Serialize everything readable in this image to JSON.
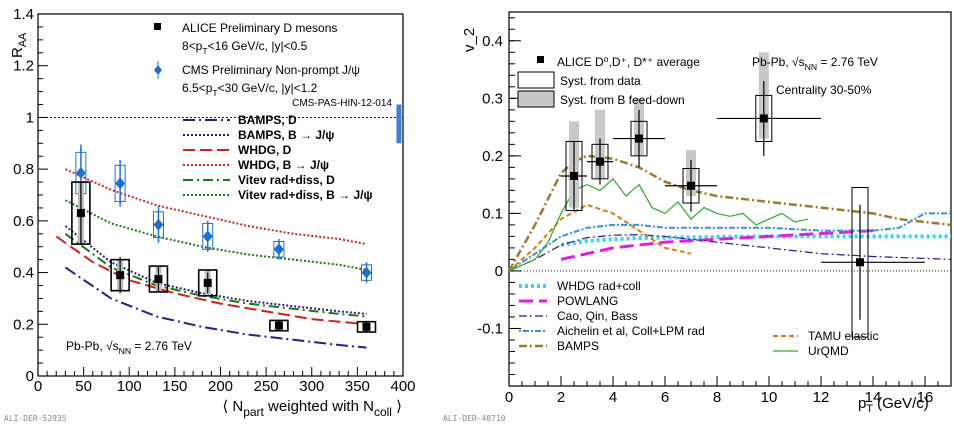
{
  "watermarks": {
    "left": "ALI-DER-52935",
    "right": "ALI-DER-48710"
  },
  "chart_data": [
    {
      "type": "scatter",
      "title": "",
      "xlabel": "⟨ N_part weighted with N_coll ⟩",
      "ylabel": "R_AA",
      "xlim": [
        0,
        400
      ],
      "ylim": [
        0,
        1.4
      ],
      "xticks": [
        "0",
        "50",
        "100",
        "150",
        "200",
        "250",
        "300",
        "350",
        "400"
      ],
      "yticks": [
        "0",
        "0.2",
        "0.4",
        "0.6",
        "0.8",
        "1",
        "1.2",
        "1.4"
      ],
      "system_label": "Pb-Pb, √s_NN = 2.76 TeV",
      "ref_note": "CMS-PAS-HIN-12-014",
      "reference_line": 1.0,
      "global_uncertainty_box": {
        "x": 395,
        "ylo": 0.9,
        "yhi": 1.05,
        "color": "#3a7fd9"
      },
      "data_series": [
        {
          "name": "ALICE Preliminary D mesons",
          "sub": "8<p_T<16 GeV/c, |y|<0.5",
          "marker": "square",
          "color": "#000000",
          "points": [
            {
              "x": 47,
              "y": 0.63,
              "stat": 0.12,
              "syst": 0.12
            },
            {
              "x": 90,
              "y": 0.39,
              "stat": 0.07,
              "syst": 0.06
            },
            {
              "x": 132,
              "y": 0.375,
              "stat": 0.05,
              "syst": 0.05
            },
            {
              "x": 186,
              "y": 0.36,
              "stat": 0.04,
              "syst": 0.05
            },
            {
              "x": 264,
              "y": 0.195,
              "stat": 0.02,
              "syst": 0.02
            },
            {
              "x": 360,
              "y": 0.19,
              "stat": 0.02,
              "syst": 0.02
            }
          ]
        },
        {
          "name": "CMS Preliminary Non-prompt J/ψ",
          "sub": "6.5<p_T<30 GeV/c, |y|<1.2",
          "marker": "diamond",
          "color": "#1f6fd1",
          "points": [
            {
              "x": 47,
              "y": 0.785,
              "stat": 0.11,
              "syst": 0.08
            },
            {
              "x": 90,
              "y": 0.745,
              "stat": 0.09,
              "syst": 0.07
            },
            {
              "x": 132,
              "y": 0.585,
              "stat": 0.07,
              "syst": 0.05
            },
            {
              "x": 186,
              "y": 0.54,
              "stat": 0.06,
              "syst": 0.05
            },
            {
              "x": 264,
              "y": 0.49,
              "stat": 0.04,
              "syst": 0.03
            },
            {
              "x": 360,
              "y": 0.4,
              "stat": 0.04,
              "syst": 0.03
            }
          ]
        }
      ],
      "model_series": [
        {
          "name": "BAMPS, D",
          "color": "#2a1b8c",
          "dash": "12,4,2,4",
          "x": [
            30,
            80,
            130,
            180,
            230,
            280,
            330,
            360
          ],
          "values": [
            0.42,
            0.3,
            0.23,
            0.19,
            0.16,
            0.14,
            0.12,
            0.11
          ]
        },
        {
          "name": "BAMPS, B → J/ψ",
          "color": "#2a1b8c",
          "dash": "2,2",
          "x": [
            30,
            80,
            130,
            180,
            230,
            280,
            330,
            360
          ],
          "values": [
            0.58,
            0.44,
            0.36,
            0.32,
            0.29,
            0.27,
            0.25,
            0.24
          ]
        },
        {
          "name": "WHDG, D",
          "color": "#d42020",
          "dash": "12,5",
          "x": [
            20,
            60,
            100,
            150,
            200,
            250,
            300,
            360
          ],
          "values": [
            0.54,
            0.44,
            0.37,
            0.32,
            0.28,
            0.25,
            0.22,
            0.2
          ]
        },
        {
          "name": "WHDG, B → J/ψ",
          "color": "#d42020",
          "dash": "2,2",
          "x": [
            30,
            80,
            130,
            180,
            230,
            280,
            330,
            360
          ],
          "values": [
            0.8,
            0.72,
            0.66,
            0.62,
            0.58,
            0.55,
            0.53,
            0.51
          ]
        },
        {
          "name": "Vitev rad+diss, D",
          "color": "#167a16",
          "dash": "10,4,2,4",
          "x": [
            30,
            80,
            130,
            180,
            230,
            280,
            330,
            360
          ],
          "values": [
            0.55,
            0.42,
            0.35,
            0.31,
            0.28,
            0.26,
            0.24,
            0.23
          ]
        },
        {
          "name": "Vitev rad+diss, B → J/ψ",
          "color": "#167a16",
          "dash": "2,2",
          "x": [
            30,
            80,
            130,
            180,
            230,
            280,
            330,
            360
          ],
          "values": [
            0.68,
            0.59,
            0.54,
            0.5,
            0.47,
            0.45,
            0.43,
            0.41
          ]
        }
      ]
    },
    {
      "type": "scatter",
      "title": "",
      "xlabel": "p_T (GeV/c)",
      "ylabel": "v_2",
      "xlim": [
        0,
        17
      ],
      "ylim": [
        -0.2,
        0.45
      ],
      "xticks": [
        "0",
        "2",
        "4",
        "6",
        "8",
        "10",
        "12",
        "14",
        "16"
      ],
      "yticks": [
        "-0.1",
        "0",
        "0.1",
        "0.2",
        "0.3",
        "0.4"
      ],
      "system_label": "Pb-Pb, √s_NN = 2.76 TeV",
      "centrality": "Centrality 30-50%",
      "data_series": [
        {
          "name": "ALICE D⁰,D⁺, D*⁺ average",
          "marker": "square",
          "color": "#000000",
          "points": [
            {
              "x": 2.5,
              "xlo": 2,
              "xhi": 3,
              "y": 0.165,
              "stat": 0.06,
              "syst_data": 0.06,
              "syst_b_lo": 0.11,
              "syst_b_hi": 0.26
            },
            {
              "x": 3.5,
              "xlo": 3,
              "xhi": 4,
              "y": 0.19,
              "stat": 0.04,
              "syst_data": 0.03,
              "syst_b_lo": 0.16,
              "syst_b_hi": 0.28
            },
            {
              "x": 5.0,
              "xlo": 4,
              "xhi": 6,
              "y": 0.23,
              "stat": 0.05,
              "syst_data": 0.03,
              "syst_b_lo": 0.2,
              "syst_b_hi": 0.3
            },
            {
              "x": 7.0,
              "xlo": 6,
              "xhi": 8,
              "y": 0.148,
              "stat": 0.045,
              "syst_data": 0.03,
              "syst_b_lo": 0.13,
              "syst_b_hi": 0.21
            },
            {
              "x": 9.8,
              "xlo": 8,
              "xhi": 12,
              "y": 0.265,
              "stat": 0.065,
              "syst_data": 0.04,
              "syst_b_lo": 0.23,
              "syst_b_hi": 0.38
            },
            {
              "x": 13.5,
              "xlo": 12,
              "xhi": 16,
              "y": 0.015,
              "stat": 0.1,
              "syst_data": 0.13,
              "syst_b_lo": 0.0,
              "syst_b_hi": 0.0
            }
          ]
        }
      ],
      "legend_boxes": [
        {
          "name": "Syst. from data",
          "fill": "none"
        },
        {
          "name": "Syst. from B feed-down",
          "fill": "#c8c8c8"
        }
      ],
      "model_series": [
        {
          "name": "WHDG rad+coll",
          "color": "#2fd5ff",
          "dash": "3,3",
          "width": 4,
          "x": [
            2,
            3,
            4,
            5,
            6,
            8,
            10,
            12,
            14,
            16,
            17
          ],
          "values": [
            0.045,
            0.052,
            0.055,
            0.057,
            0.058,
            0.059,
            0.06,
            0.06,
            0.06,
            0.06,
            0.06
          ]
        },
        {
          "name": "POWLANG",
          "color": "#e020e0",
          "dash": "14,6",
          "width": 3,
          "x": [
            2,
            3,
            4,
            5,
            6,
            8,
            10,
            12,
            14
          ],
          "values": [
            0.02,
            0.03,
            0.04,
            0.045,
            0.05,
            0.055,
            0.06,
            0.065,
            0.07
          ]
        },
        {
          "name": "Cao, Qin, Bass",
          "color": "#2a1b8c",
          "dash": "8,3,2,3",
          "width": 1.2,
          "x": [
            0,
            1,
            2,
            3,
            4,
            5,
            6,
            8,
            10,
            12,
            14,
            17
          ],
          "values": [
            0.0,
            0.02,
            0.045,
            0.058,
            0.062,
            0.063,
            0.06,
            0.05,
            0.04,
            0.03,
            0.025,
            0.02
          ]
        },
        {
          "name": "Aichelin et al, Coll+LPM rad",
          "color": "#3a90e0",
          "dash": "2,2,6,2",
          "width": 2,
          "x": [
            0,
            1,
            2,
            3,
            4,
            5,
            6,
            8,
            10,
            12,
            14,
            15,
            16,
            17
          ],
          "values": [
            0.0,
            0.03,
            0.06,
            0.075,
            0.08,
            0.08,
            0.075,
            0.075,
            0.075,
            0.07,
            0.07,
            0.075,
            0.1,
            0.1
          ]
        },
        {
          "name": "BAMPS",
          "color": "#9a7a30",
          "dash": "8,3,2,3",
          "width": 2.5,
          "x": [
            0,
            1,
            2,
            2.5,
            3,
            4,
            5,
            6,
            7,
            8,
            10,
            12,
            14,
            15,
            16,
            17
          ],
          "values": [
            0.0,
            0.08,
            0.17,
            0.19,
            0.2,
            0.195,
            0.18,
            0.155,
            0.14,
            0.13,
            0.12,
            0.11,
            0.1,
            0.09,
            0.085,
            0.08
          ]
        },
        {
          "name": "TAMU elastic",
          "color": "#e07a10",
          "dash": "5,3",
          "width": 2,
          "x": [
            0,
            1,
            2,
            3,
            4,
            5,
            6,
            7
          ],
          "values": [
            0.0,
            0.04,
            0.09,
            0.115,
            0.1,
            0.07,
            0.04,
            0.03
          ]
        },
        {
          "name": "UrQMD",
          "color": "#25b025",
          "dash": "",
          "width": 1.2,
          "x": [
            0,
            1,
            1.5,
            2,
            2.5,
            3,
            3.5,
            4,
            4.5,
            5,
            5.5,
            6,
            6.5,
            7,
            7.5,
            8,
            8.5,
            9,
            9.5,
            10,
            10.5,
            11,
            11.5
          ],
          "values": [
            0.0,
            0.02,
            0.05,
            0.1,
            0.14,
            0.15,
            0.14,
            0.16,
            0.13,
            0.15,
            0.11,
            0.1,
            0.12,
            0.09,
            0.11,
            0.1,
            0.095,
            0.1,
            0.08,
            0.09,
            0.1,
            0.085,
            0.09
          ]
        }
      ]
    }
  ]
}
